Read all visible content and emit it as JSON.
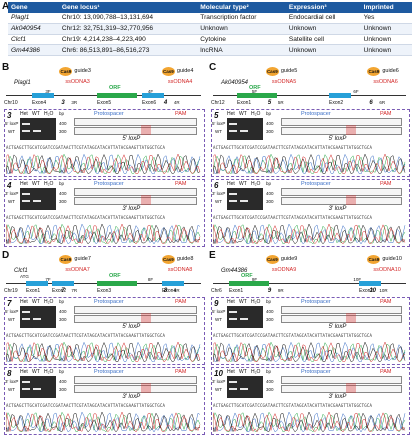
{
  "panel_letters": [
    "A",
    "B",
    "C",
    "D",
    "E"
  ],
  "table": {
    "headers": [
      "Gene",
      "Gene locus¹",
      "Molecular type²",
      "Expression³",
      "Imprinted"
    ],
    "rows": [
      [
        "Plagl1",
        "Chr10: 13,090,788–13,131,694",
        "Transcription factor",
        "Endocardial cell",
        "Yes"
      ],
      [
        "Ak040954",
        "Chr12: 32,751,319–32,770,956",
        "Unknown",
        "Unknown",
        "Unknown"
      ],
      [
        "Clcf1",
        "Chr19: 4,214,238–4,223,490",
        "Cytokine",
        "Satellite cell",
        "Unknown"
      ],
      [
        "Gm44386",
        "Chr6: 86,513,891–86,516,273",
        "lncRNA",
        "Unknown",
        "Unknown"
      ]
    ]
  },
  "genes": {
    "B": {
      "name": "Plagl1",
      "chr": "Chr10",
      "guides": [
        "guide3",
        "guide4"
      ],
      "oligos": [
        "ssODNA3",
        "ssODNA4"
      ],
      "exons": [
        "Exon4",
        "Exon5",
        "Exon6"
      ],
      "primers": [
        "3F",
        "3R",
        "4F",
        "4R"
      ],
      "nums": [
        "3",
        "4"
      ]
    },
    "C": {
      "name": "Ak040954",
      "chr": "Chr12",
      "guides": [
        "guide5",
        "guide6"
      ],
      "oligos": [
        "ssODNA5",
        "ssODNA6"
      ],
      "exons": [
        "Exon1",
        "Exon2"
      ],
      "primers": [
        "5F",
        "5R",
        "6F",
        "6R"
      ],
      "nums": [
        "5",
        "6"
      ]
    },
    "D": {
      "name": "Clcf1",
      "chr": "Chr19",
      "guides": [
        "guide7",
        "guide8"
      ],
      "oligos": [
        "ssODNA7",
        "ssODNA8"
      ],
      "exons": [
        "Exon1",
        "Exon2",
        "Exon3",
        "Exon4"
      ],
      "primers": [
        "7F",
        "7R",
        "8F",
        "8R"
      ],
      "nums": [
        "7",
        "8"
      ],
      "atg": "ATG"
    },
    "E": {
      "name": "Gm44386",
      "chr": "Chr6",
      "guides": [
        "guide9",
        "guide10"
      ],
      "oligos": [
        "ssODNA9",
        "ssODNA10"
      ],
      "exons": [
        "Exon1",
        "Exon2"
      ],
      "primers": [
        "9F",
        "9R",
        "10F",
        "10R"
      ],
      "nums": [
        "9",
        "10"
      ]
    }
  },
  "common": {
    "cas9": "Cas9",
    "orf": "ORF",
    "het": "Het",
    "wt": "WT",
    "h2o": "H₂O",
    "bp": "bp",
    "loxp_allele": "loxP",
    "wt_allele": "WT",
    "bp400": "400",
    "bp300": "300",
    "bp200": "200",
    "protospacer": "Protospacer",
    "pam": "PAM",
    "lox5": "5′ loxP",
    "lox3": "3′ loxP",
    "seq_sample": "ACTGAGCTTGCATCGATCCGATAACTTCGTATAGCATACATTATACGAAGTTATGGCTGCA"
  }
}
